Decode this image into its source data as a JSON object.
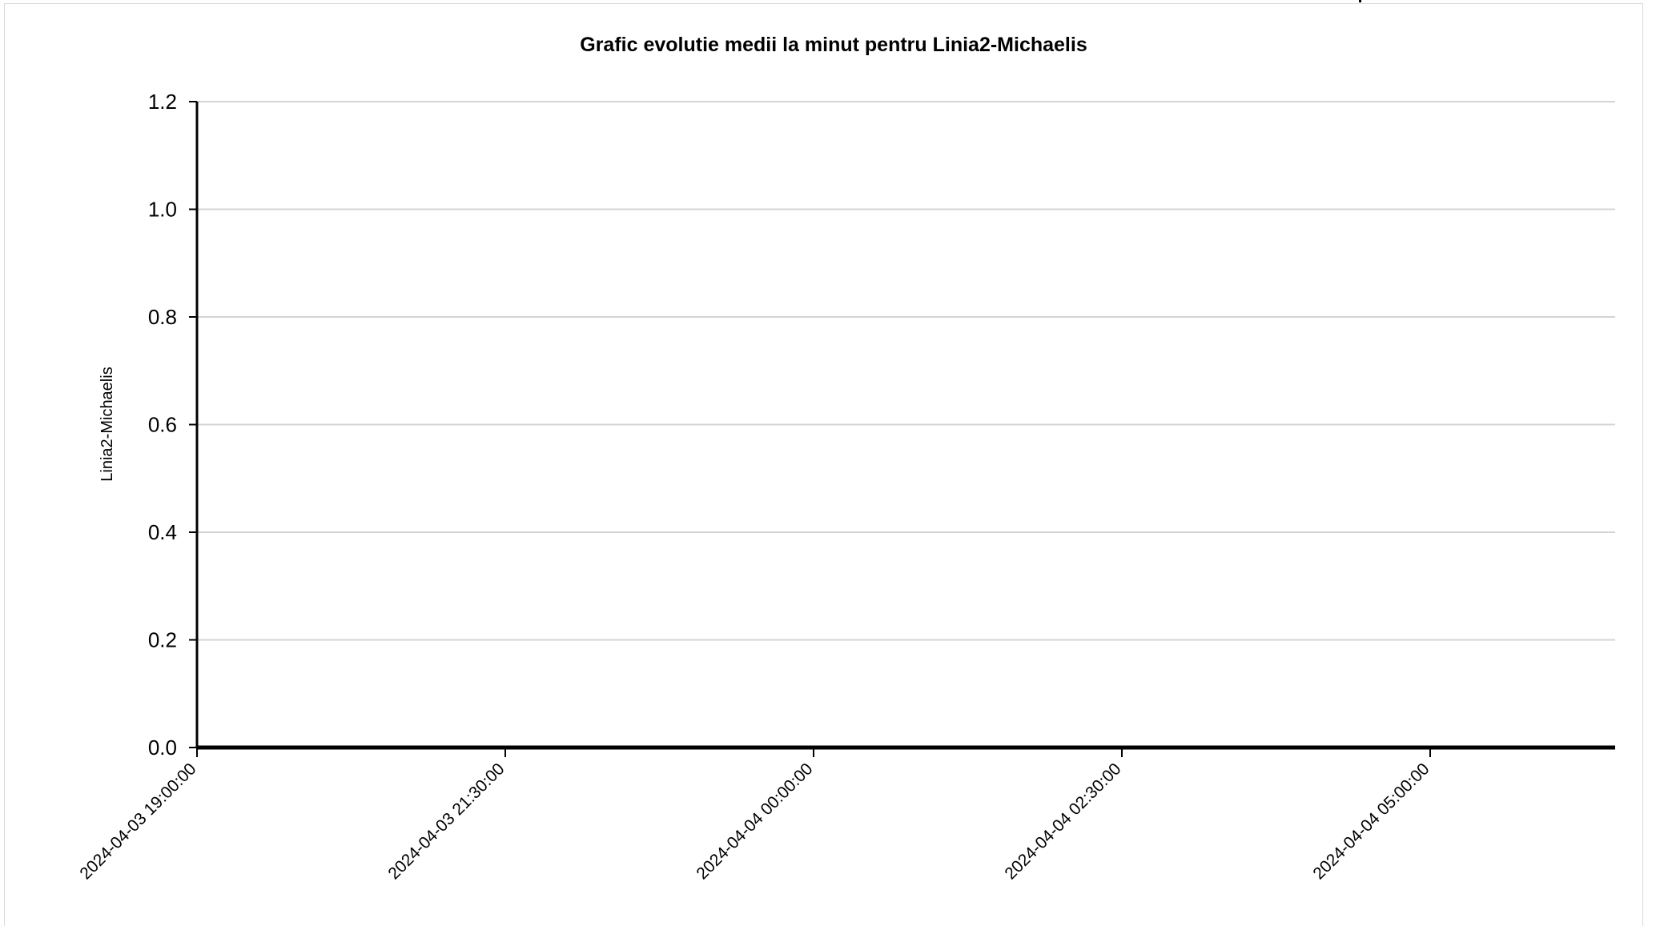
{
  "chart_data": {
    "type": "line",
    "title": "Grafic evolutie medii la minut pentru Linia2-Michaelis",
    "xlabel": "",
    "ylabel": "Linia2-Michaelis",
    "ylim": [
      0,
      1.2
    ],
    "xlim": [
      "2024-04-03 19:00:00",
      "2024-04-04 06:30:00"
    ],
    "y_ticks": [
      "0.0",
      "0.2",
      "0.4",
      "0.6",
      "0.8",
      "1.0",
      "1.2"
    ],
    "y_tick_values": [
      0,
      0.2,
      0.4,
      0.6,
      0.8,
      1.0,
      1.2
    ],
    "x_ticks": [
      "2024-04-03 19:00:00",
      "2024-04-03 21:30:00",
      "2024-04-04 00:00:00",
      "2024-04-04 02:30:00",
      "2024-04-04 05:00:00"
    ],
    "grid": true,
    "series": [
      {
        "color": "#000000",
        "x": [
          "2024-04-03 19:00:00",
          "2024-04-04 06:30:00"
        ],
        "y": [
          0,
          0
        ]
      }
    ]
  }
}
